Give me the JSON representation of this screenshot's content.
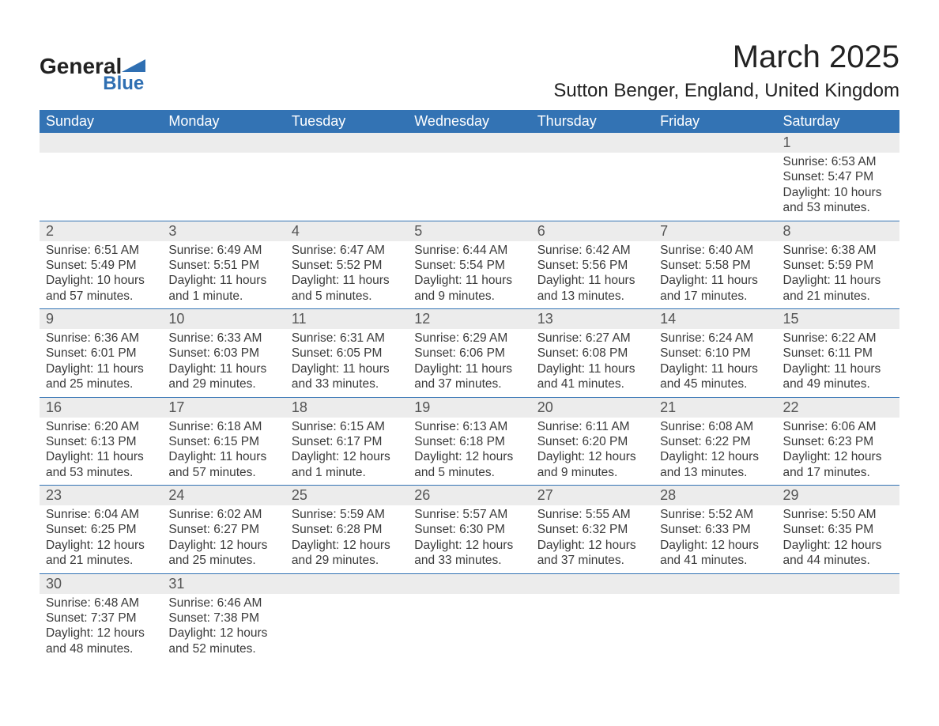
{
  "brand": {
    "name_part1": "General",
    "name_part2": "Blue"
  },
  "title": "March 2025",
  "location": "Sutton Benger, England, United Kingdom",
  "colors": {
    "header_bg": "#3373b4",
    "header_text": "#ffffff",
    "daynum_bg": "#ececec",
    "text": "#3a3a3a",
    "brand_blue": "#2f6fb2"
  },
  "fonts": {
    "title_size_pt": 30,
    "location_size_pt": 18,
    "dayheader_size_pt": 14,
    "body_size_pt": 11.5
  },
  "day_names": [
    "Sunday",
    "Monday",
    "Tuesday",
    "Wednesday",
    "Thursday",
    "Friday",
    "Saturday"
  ],
  "weeks": [
    [
      null,
      null,
      null,
      null,
      null,
      null,
      {
        "n": "1",
        "sr": "Sunrise: 6:53 AM",
        "ss": "Sunset: 5:47 PM",
        "d1": "Daylight: 10 hours",
        "d2": "and 53 minutes."
      }
    ],
    [
      {
        "n": "2",
        "sr": "Sunrise: 6:51 AM",
        "ss": "Sunset: 5:49 PM",
        "d1": "Daylight: 10 hours",
        "d2": "and 57 minutes."
      },
      {
        "n": "3",
        "sr": "Sunrise: 6:49 AM",
        "ss": "Sunset: 5:51 PM",
        "d1": "Daylight: 11 hours",
        "d2": "and 1 minute."
      },
      {
        "n": "4",
        "sr": "Sunrise: 6:47 AM",
        "ss": "Sunset: 5:52 PM",
        "d1": "Daylight: 11 hours",
        "d2": "and 5 minutes."
      },
      {
        "n": "5",
        "sr": "Sunrise: 6:44 AM",
        "ss": "Sunset: 5:54 PM",
        "d1": "Daylight: 11 hours",
        "d2": "and 9 minutes."
      },
      {
        "n": "6",
        "sr": "Sunrise: 6:42 AM",
        "ss": "Sunset: 5:56 PM",
        "d1": "Daylight: 11 hours",
        "d2": "and 13 minutes."
      },
      {
        "n": "7",
        "sr": "Sunrise: 6:40 AM",
        "ss": "Sunset: 5:58 PM",
        "d1": "Daylight: 11 hours",
        "d2": "and 17 minutes."
      },
      {
        "n": "8",
        "sr": "Sunrise: 6:38 AM",
        "ss": "Sunset: 5:59 PM",
        "d1": "Daylight: 11 hours",
        "d2": "and 21 minutes."
      }
    ],
    [
      {
        "n": "9",
        "sr": "Sunrise: 6:36 AM",
        "ss": "Sunset: 6:01 PM",
        "d1": "Daylight: 11 hours",
        "d2": "and 25 minutes."
      },
      {
        "n": "10",
        "sr": "Sunrise: 6:33 AM",
        "ss": "Sunset: 6:03 PM",
        "d1": "Daylight: 11 hours",
        "d2": "and 29 minutes."
      },
      {
        "n": "11",
        "sr": "Sunrise: 6:31 AM",
        "ss": "Sunset: 6:05 PM",
        "d1": "Daylight: 11 hours",
        "d2": "and 33 minutes."
      },
      {
        "n": "12",
        "sr": "Sunrise: 6:29 AM",
        "ss": "Sunset: 6:06 PM",
        "d1": "Daylight: 11 hours",
        "d2": "and 37 minutes."
      },
      {
        "n": "13",
        "sr": "Sunrise: 6:27 AM",
        "ss": "Sunset: 6:08 PM",
        "d1": "Daylight: 11 hours",
        "d2": "and 41 minutes."
      },
      {
        "n": "14",
        "sr": "Sunrise: 6:24 AM",
        "ss": "Sunset: 6:10 PM",
        "d1": "Daylight: 11 hours",
        "d2": "and 45 minutes."
      },
      {
        "n": "15",
        "sr": "Sunrise: 6:22 AM",
        "ss": "Sunset: 6:11 PM",
        "d1": "Daylight: 11 hours",
        "d2": "and 49 minutes."
      }
    ],
    [
      {
        "n": "16",
        "sr": "Sunrise: 6:20 AM",
        "ss": "Sunset: 6:13 PM",
        "d1": "Daylight: 11 hours",
        "d2": "and 53 minutes."
      },
      {
        "n": "17",
        "sr": "Sunrise: 6:18 AM",
        "ss": "Sunset: 6:15 PM",
        "d1": "Daylight: 11 hours",
        "d2": "and 57 minutes."
      },
      {
        "n": "18",
        "sr": "Sunrise: 6:15 AM",
        "ss": "Sunset: 6:17 PM",
        "d1": "Daylight: 12 hours",
        "d2": "and 1 minute."
      },
      {
        "n": "19",
        "sr": "Sunrise: 6:13 AM",
        "ss": "Sunset: 6:18 PM",
        "d1": "Daylight: 12 hours",
        "d2": "and 5 minutes."
      },
      {
        "n": "20",
        "sr": "Sunrise: 6:11 AM",
        "ss": "Sunset: 6:20 PM",
        "d1": "Daylight: 12 hours",
        "d2": "and 9 minutes."
      },
      {
        "n": "21",
        "sr": "Sunrise: 6:08 AM",
        "ss": "Sunset: 6:22 PM",
        "d1": "Daylight: 12 hours",
        "d2": "and 13 minutes."
      },
      {
        "n": "22",
        "sr": "Sunrise: 6:06 AM",
        "ss": "Sunset: 6:23 PM",
        "d1": "Daylight: 12 hours",
        "d2": "and 17 minutes."
      }
    ],
    [
      {
        "n": "23",
        "sr": "Sunrise: 6:04 AM",
        "ss": "Sunset: 6:25 PM",
        "d1": "Daylight: 12 hours",
        "d2": "and 21 minutes."
      },
      {
        "n": "24",
        "sr": "Sunrise: 6:02 AM",
        "ss": "Sunset: 6:27 PM",
        "d1": "Daylight: 12 hours",
        "d2": "and 25 minutes."
      },
      {
        "n": "25",
        "sr": "Sunrise: 5:59 AM",
        "ss": "Sunset: 6:28 PM",
        "d1": "Daylight: 12 hours",
        "d2": "and 29 minutes."
      },
      {
        "n": "26",
        "sr": "Sunrise: 5:57 AM",
        "ss": "Sunset: 6:30 PM",
        "d1": "Daylight: 12 hours",
        "d2": "and 33 minutes."
      },
      {
        "n": "27",
        "sr": "Sunrise: 5:55 AM",
        "ss": "Sunset: 6:32 PM",
        "d1": "Daylight: 12 hours",
        "d2": "and 37 minutes."
      },
      {
        "n": "28",
        "sr": "Sunrise: 5:52 AM",
        "ss": "Sunset: 6:33 PM",
        "d1": "Daylight: 12 hours",
        "d2": "and 41 minutes."
      },
      {
        "n": "29",
        "sr": "Sunrise: 5:50 AM",
        "ss": "Sunset: 6:35 PM",
        "d1": "Daylight: 12 hours",
        "d2": "and 44 minutes."
      }
    ],
    [
      {
        "n": "30",
        "sr": "Sunrise: 6:48 AM",
        "ss": "Sunset: 7:37 PM",
        "d1": "Daylight: 12 hours",
        "d2": "and 48 minutes."
      },
      {
        "n": "31",
        "sr": "Sunrise: 6:46 AM",
        "ss": "Sunset: 7:38 PM",
        "d1": "Daylight: 12 hours",
        "d2": "and 52 minutes."
      },
      null,
      null,
      null,
      null,
      null
    ]
  ]
}
